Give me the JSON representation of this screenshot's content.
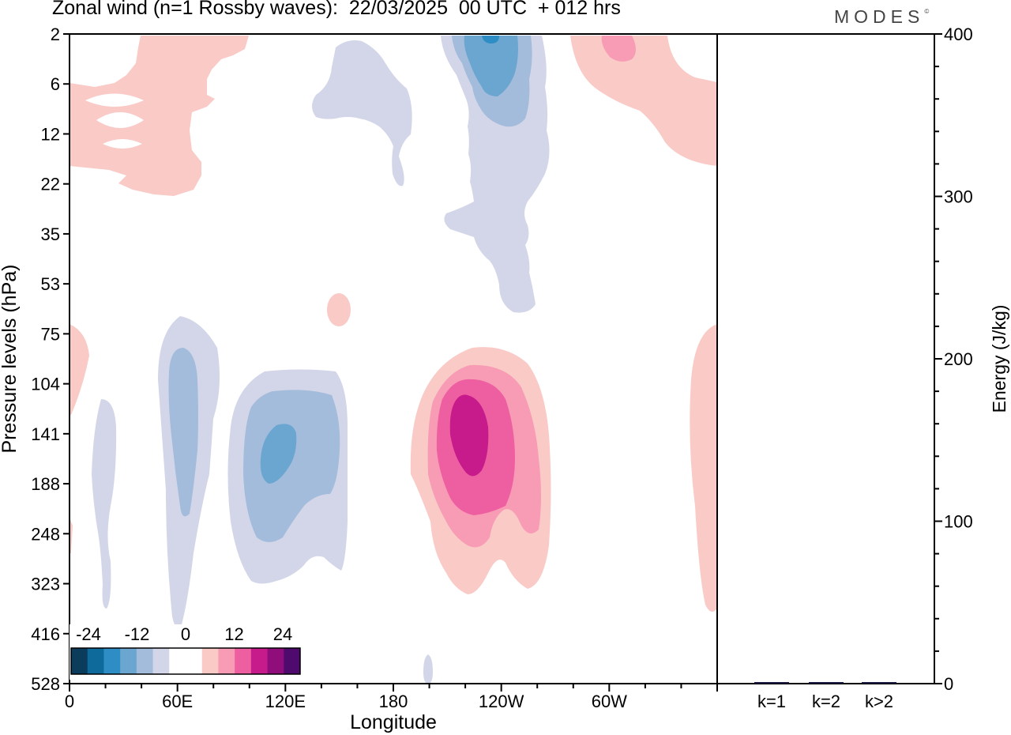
{
  "header": {
    "title": "Zonal wind (n=1 Rossby waves):  22/03/2025  00 UTC  + 012 hrs",
    "logo": "MODES",
    "logo_mark": "©"
  },
  "chart_data": [
    {
      "type": "heatmap",
      "title": "Zonal wind (n=1 Rossby waves):  22/03/2025  00 UTC  + 012 hrs",
      "xlabel": "Longitude",
      "ylabel": "Pressure levels (hPa)",
      "x_ticks": [
        "0",
        "60E",
        "120E",
        "180",
        "120W",
        "60W"
      ],
      "x_tick_degrees": [
        0,
        60,
        120,
        180,
        240,
        300
      ],
      "xlim": [
        0,
        360
      ],
      "y_ticks": [
        "2",
        "6",
        "12",
        "22",
        "35",
        "53",
        "75",
        "104",
        "141",
        "188",
        "248",
        "323",
        "416",
        "528"
      ],
      "y_scale": "model levels (non-linear, top at 2 hPa)",
      "colorbar": {
        "tick_labels": [
          "-24",
          "-12",
          "0",
          "12",
          "24"
        ],
        "colors": [
          "#0c3c5c",
          "#0e6a9a",
          "#2d8dc4",
          "#6aa6cf",
          "#a4bcdc",
          "#d3d6e8",
          "#ffffff",
          "#ffffff",
          "#f9cac6",
          "#f89bb5",
          "#ee5fa1",
          "#c81b8b",
          "#8f0e7c",
          "#4f0a6d"
        ]
      },
      "features": [
        {
          "sign": "negative",
          "center_lon": 111,
          "center_hpa": 141,
          "min_value": -14
        },
        {
          "sign": "negative",
          "center_lon": 65,
          "center_hpa": 150,
          "min_value": -10
        },
        {
          "sign": "negative",
          "center_lon": 235,
          "center_hpa": 3,
          "min_value": -20
        },
        {
          "sign": "negative",
          "center_lon": 18,
          "center_hpa": 170,
          "min_value": -5
        },
        {
          "sign": "negative",
          "center_lon": 165,
          "center_hpa": 6,
          "min_value": -5
        },
        {
          "sign": "positive",
          "center_lon": 225,
          "center_hpa": 141,
          "max_value": 22
        },
        {
          "sign": "positive",
          "center_lon": 310,
          "center_hpa": 3,
          "max_value": 10
        },
        {
          "sign": "positive",
          "center_lon": 60,
          "center_hpa": 8,
          "max_value": 5
        },
        {
          "sign": "positive",
          "center_lon": 355,
          "center_hpa": 200,
          "max_value": 5
        }
      ]
    },
    {
      "type": "bar",
      "ylabel": "Energy (J/kg)",
      "categories": [
        "k=1",
        "k=2",
        "k>2"
      ],
      "values": [
        0.5,
        0.2,
        0.6
      ],
      "ylim": [
        0,
        400
      ],
      "y_ticks": [
        "0",
        "100",
        "200",
        "300",
        "400"
      ]
    }
  ]
}
